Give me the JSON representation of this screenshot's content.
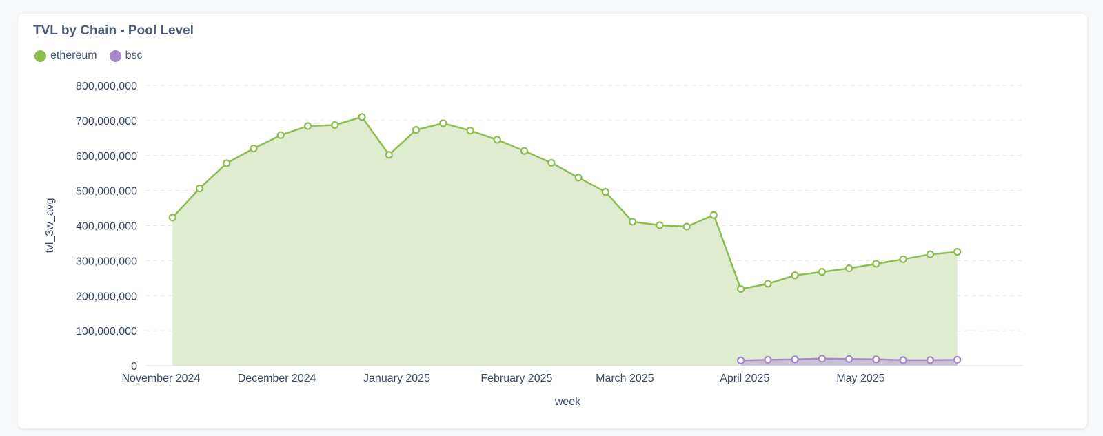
{
  "card": {
    "title": "TVL by Chain - Pool Level"
  },
  "colors": {
    "ethereum": "#8cbd4f",
    "ethereum_fill": "#dfecd0",
    "bsc": "#a589c9",
    "bsc_fill": "#c9c1d4",
    "grid": "#e6e8ec"
  },
  "chart_data": {
    "type": "area",
    "title": "TVL by Chain - Pool Level",
    "xlabel": "week",
    "ylabel": "tvl_3w_avg",
    "ylim": [
      0,
      800000000
    ],
    "y_ticks": [
      "0",
      "100,000,000",
      "200,000,000",
      "300,000,000",
      "400,000,000",
      "500,000,000",
      "600,000,000",
      "700,000,000",
      "800,000,000"
    ],
    "x_tick_labels": [
      "November 2024",
      "December 2024",
      "January 2025",
      "February 2025",
      "March 2025",
      "April 2025",
      "May 2025"
    ],
    "x_tick_dates": [
      "2024-11-01",
      "2024-12-01",
      "2025-01-01",
      "2025-02-01",
      "2025-03-01",
      "2025-04-01",
      "2025-05-01"
    ],
    "x_range": [
      "2024-10-28",
      "2025-06-12"
    ],
    "grid": "horizontal dashed",
    "legend_position": "top-left",
    "series": [
      {
        "name": "ethereum",
        "points": [
          [
            "2024-11-04",
            423000000
          ],
          [
            "2024-11-11",
            506000000
          ],
          [
            "2024-11-18",
            578000000
          ],
          [
            "2024-11-25",
            620000000
          ],
          [
            "2024-12-02",
            658000000
          ],
          [
            "2024-12-09",
            684000000
          ],
          [
            "2024-12-16",
            687000000
          ],
          [
            "2024-12-23",
            710000000
          ],
          [
            "2024-12-30",
            602000000
          ],
          [
            "2025-01-06",
            673000000
          ],
          [
            "2025-01-13",
            692000000
          ],
          [
            "2025-01-20",
            671000000
          ],
          [
            "2025-01-27",
            645000000
          ],
          [
            "2025-02-03",
            613000000
          ],
          [
            "2025-02-10",
            579000000
          ],
          [
            "2025-02-17",
            537000000
          ],
          [
            "2025-02-24",
            496000000
          ],
          [
            "2025-03-03",
            411000000
          ],
          [
            "2025-03-10",
            401000000
          ],
          [
            "2025-03-17",
            397000000
          ],
          [
            "2025-03-24",
            430000000
          ],
          [
            "2025-03-31",
            219000000
          ],
          [
            "2025-04-07",
            234000000
          ],
          [
            "2025-04-14",
            258000000
          ],
          [
            "2025-04-21",
            268000000
          ],
          [
            "2025-04-28",
            278000000
          ],
          [
            "2025-05-05",
            291000000
          ],
          [
            "2025-05-12",
            304000000
          ],
          [
            "2025-05-19",
            318000000
          ],
          [
            "2025-05-26",
            325000000
          ]
        ]
      },
      {
        "name": "bsc",
        "points": [
          [
            "2025-03-31",
            15000000
          ],
          [
            "2025-04-07",
            17000000
          ],
          [
            "2025-04-14",
            18000000
          ],
          [
            "2025-04-21",
            20000000
          ],
          [
            "2025-04-28",
            19000000
          ],
          [
            "2025-05-05",
            18000000
          ],
          [
            "2025-05-12",
            16000000
          ],
          [
            "2025-05-19",
            16000000
          ],
          [
            "2025-05-26",
            17000000
          ]
        ]
      }
    ]
  }
}
